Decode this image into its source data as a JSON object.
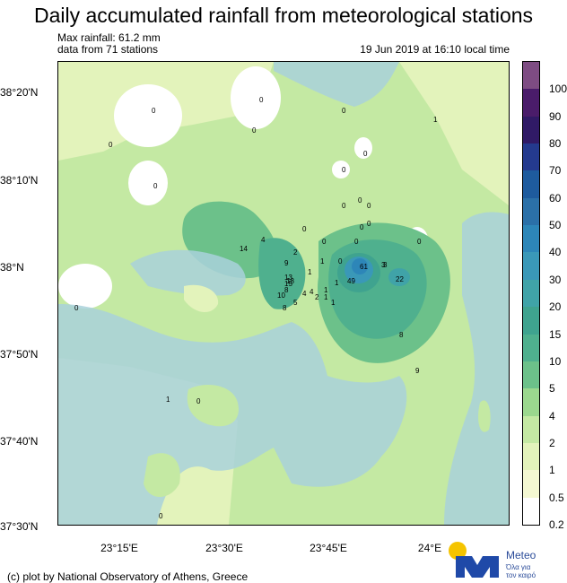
{
  "title": "Daily accumulated rainfall from meteorological stations",
  "max_rainfall": "Max rainfall: 61.2 mm",
  "stations": "data from 71 stations",
  "timestamp": "19 Jun 2019 at 16:10 local time",
  "lat_labels": [
    "38°20'N",
    "38°10'N",
    "38°N",
    "37°50'N",
    "37°40'N",
    "37°30'N"
  ],
  "lon_labels": [
    "23°15'E",
    "23°30'E",
    "23°45'E",
    "24°E"
  ],
  "credit": "(c) plot by National Observatory of Athens, Greece",
  "logo": {
    "name": "Meteo",
    "tagline_1": "Όλα για",
    "tagline_2": "τον καιρό",
    "sun_color": "#f5c400",
    "mark_color": "#1f49a8"
  },
  "colorbar": {
    "labels": [
      "100",
      "90",
      "80",
      "70",
      "60",
      "50",
      "40",
      "30",
      "20",
      "15",
      "10",
      "5",
      "4",
      "2",
      "1",
      "0.5",
      "0.2"
    ],
    "colors": [
      "#7e4c83",
      "#4a1c6a",
      "#301a66",
      "#243a8e",
      "#1e5b9e",
      "#2b70a8",
      "#2d86b8",
      "#3a98b8",
      "#40a3a8",
      "#3fa38f",
      "#4fb08e",
      "#6cc18a",
      "#9bd88e",
      "#c4e9a3",
      "#e3f3bb",
      "#f4f8d2",
      "#ffffff"
    ]
  },
  "station_values": [
    "0",
    "0",
    "0",
    "0",
    "0",
    "0",
    "0",
    "0",
    "0",
    "0",
    "0",
    "0",
    "0",
    "0",
    "0",
    "0",
    "0",
    "0",
    "4",
    "14",
    "2",
    "9",
    "8",
    "13",
    "15",
    "18",
    "10",
    "8",
    "4",
    "5",
    "1",
    "4",
    "2",
    "1",
    "1",
    "1",
    "1",
    "1",
    "0",
    "3",
    "61",
    "3",
    "22",
    "49",
    "8",
    "9",
    "1",
    "0",
    "0",
    "1"
  ]
}
